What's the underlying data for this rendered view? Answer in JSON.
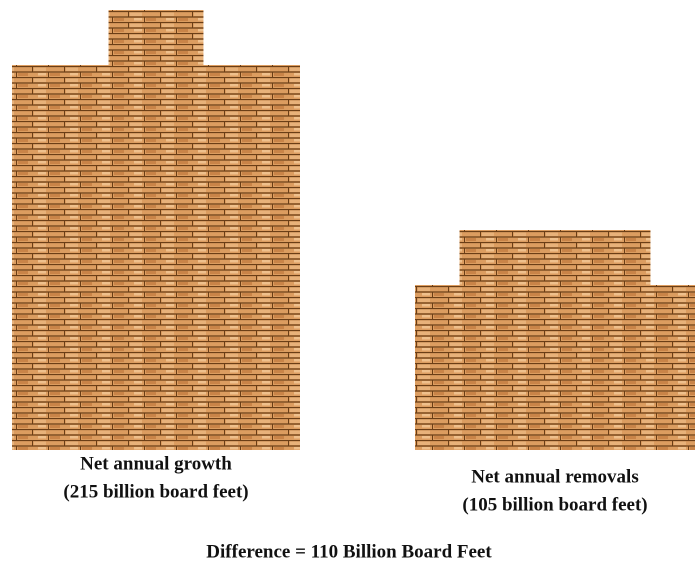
{
  "chart_data": {
    "type": "pictograph",
    "categories": [
      "Net annual growth",
      "Net annual removals"
    ],
    "values": [
      215,
      105
    ],
    "value_labels": [
      "(215 billion board feet)",
      "(105 billion board feet)"
    ],
    "annotation": "Difference = 110 Billion Board Feet"
  }
}
